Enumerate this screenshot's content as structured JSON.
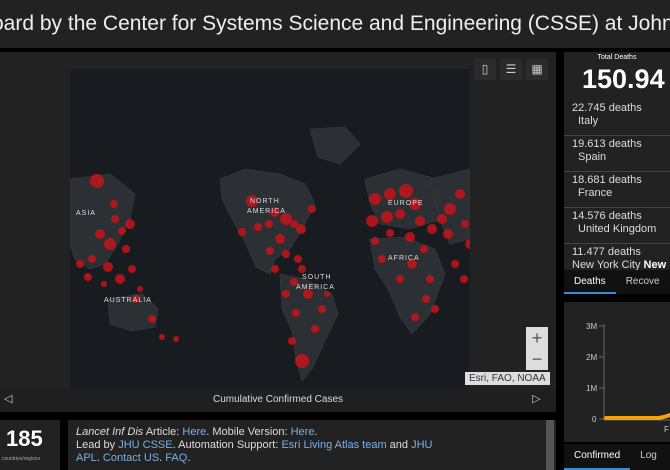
{
  "header": {
    "title": "oard by the Center for Systems Science and Engineering (CSSE) at Johns Hopkins"
  },
  "map": {
    "labels": {
      "asia": "ASIA",
      "north_america": "NORTH\nAMERICA",
      "na1": "NORTH",
      "na2": "AMERICA",
      "europe": "EUROPE",
      "africa": "AFRICA",
      "sa1": "SOUTH",
      "sa2": "AMERICA",
      "australia": "AUSTRALIA"
    },
    "attribution": "Esri, FAO, NOAA",
    "caption": "Cumulative Confirmed Cases",
    "zoom_in": "+",
    "zoom_out": "−",
    "prev": "◁",
    "next": "▷",
    "bubble_color": "#c4141b"
  },
  "total": {
    "label": "Total Deaths",
    "value": "150.94"
  },
  "deaths_list": [
    {
      "deaths": "22.745 deaths",
      "place": "Italy",
      "bold": ""
    },
    {
      "deaths": "19.613 deaths",
      "place": "Spain",
      "bold": ""
    },
    {
      "deaths": "18.681 deaths",
      "place": "France",
      "bold": ""
    },
    {
      "deaths": "14.576 deaths",
      "place": "United Kingdom",
      "bold": ""
    },
    {
      "deaths": "11.477 deaths",
      "place": "New York City ",
      "bold": "New"
    }
  ],
  "tabs": {
    "deaths": "Deaths",
    "recovered": "Recove"
  },
  "chart": {
    "y_ticks": [
      "3M",
      "2M",
      "1M",
      "0"
    ],
    "x_label": "F",
    "line_color": "#f5a20a"
  },
  "chart_data": {
    "type": "line",
    "ylabel": "",
    "yticks": [
      "3M",
      "2M",
      "1M",
      "0"
    ],
    "ylim": [
      0,
      3000000
    ]
  },
  "tabs2": {
    "confirmed": "Confirmed",
    "log": "Log"
  },
  "countries": {
    "count": "185",
    "label": "countries/regions"
  },
  "info": {
    "line1_a": "Lancet Inf Dis",
    "line1_b": " Article: ",
    "line1_c": "Here",
    "line1_d": ". Mobile Version: ",
    "line1_e": "Here",
    "line1_f": ".",
    "line2_a": "Lead by ",
    "line2_b": "JHU CSSE",
    "line2_c": ". Automation Support: ",
    "line2_d": "Esri Living Atlas team",
    "line2_e": " and ",
    "line2_f": "JHU",
    "line3_a": "APL",
    "line3_b": ". ",
    "line3_c": "Contact US",
    "line3_d": ". ",
    "line3_e": "FAQ",
    "line3_f": "."
  }
}
